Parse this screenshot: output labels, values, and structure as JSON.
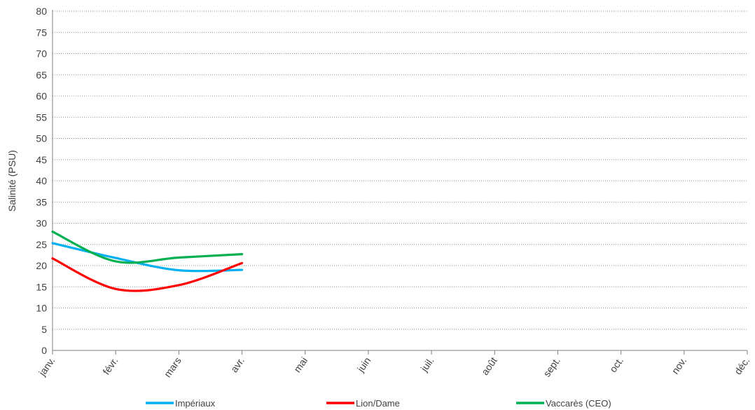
{
  "chart_data": {
    "type": "line",
    "title": "",
    "xlabel": "",
    "ylabel": "Salinité (PSU)",
    "categories": [
      "janv.",
      "févr.",
      "mars",
      "avr.",
      "mai",
      "juin",
      "juil.",
      "août",
      "sept.",
      "oct.",
      "nov.",
      "déc."
    ],
    "ylim": [
      0,
      80
    ],
    "yticks": [
      0,
      5,
      10,
      15,
      20,
      25,
      30,
      35,
      40,
      45,
      50,
      55,
      60,
      65,
      70,
      75,
      80
    ],
    "grid": "horizontal-dotted",
    "legend_position": "bottom",
    "smooth": true,
    "series": [
      {
        "name": "Impériaux",
        "color": "#00B0F0",
        "values": [
          25.3,
          21.8,
          18.9,
          19.0,
          null,
          null,
          null,
          null,
          null,
          null,
          null,
          null
        ]
      },
      {
        "name": "Lion/Dame",
        "color": "#FF0000",
        "values": [
          21.7,
          14.5,
          15.4,
          20.6,
          null,
          null,
          null,
          null,
          null,
          null,
          null,
          null
        ]
      },
      {
        "name": "Vaccarès (CEO)",
        "color": "#00B050",
        "values": [
          28.0,
          21.0,
          21.9,
          22.7,
          null,
          null,
          null,
          null,
          null,
          null,
          null,
          null
        ]
      }
    ]
  }
}
